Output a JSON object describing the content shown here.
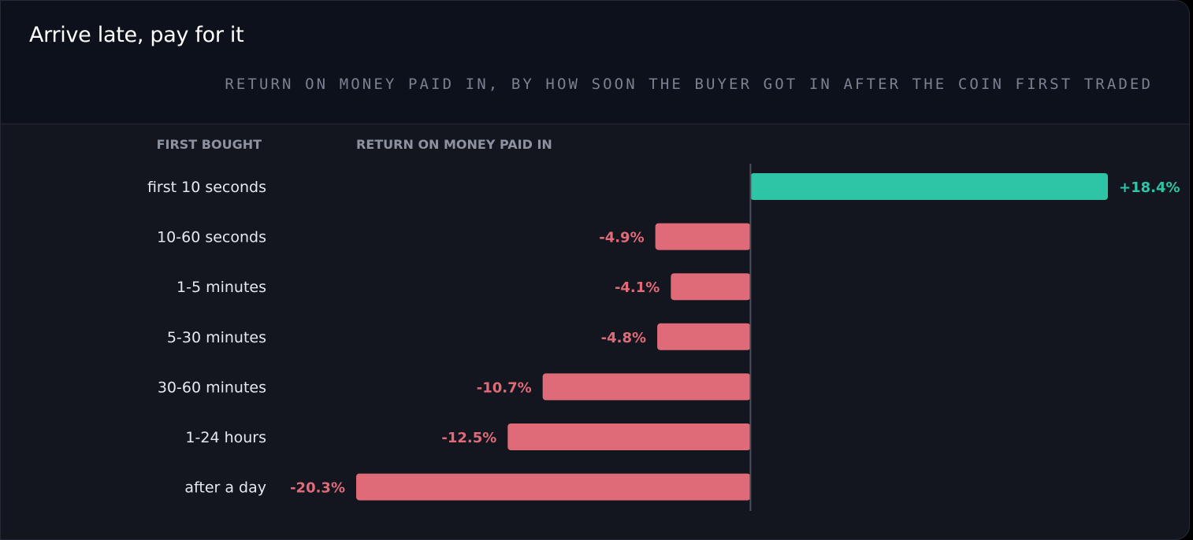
{
  "card": {
    "title": "Arrive late, pay for it",
    "subtitle": "RETURN ON MONEY PAID IN, BY HOW SOON THE BUYER GOT IN AFTER THE COIN FIRST TRADED"
  },
  "columns": {
    "left": "FIRST BOUGHT",
    "right": "RETURN ON MONEY PAID IN"
  },
  "colors": {
    "positive": "#2ec4a6",
    "negative": "#e06b78",
    "axis": "#4a4f5c"
  },
  "chart_data": {
    "type": "bar",
    "orientation": "horizontal",
    "categories": [
      "first 10 seconds",
      "10-60 seconds",
      "1-5 minutes",
      "5-30 minutes",
      "30-60 minutes",
      "1-24 hours",
      "after a day"
    ],
    "values": [
      18.4,
      -4.9,
      -4.1,
      -4.8,
      -10.7,
      -12.5,
      -20.3
    ],
    "value_labels": [
      "+18.4%",
      "-4.9%",
      "-4.1%",
      "-4.8%",
      "-10.7%",
      "-12.5%",
      "-20.3%"
    ],
    "unit": "%",
    "xlim": [
      -20.3,
      18.4
    ],
    "grid": false,
    "zero_line": true
  }
}
